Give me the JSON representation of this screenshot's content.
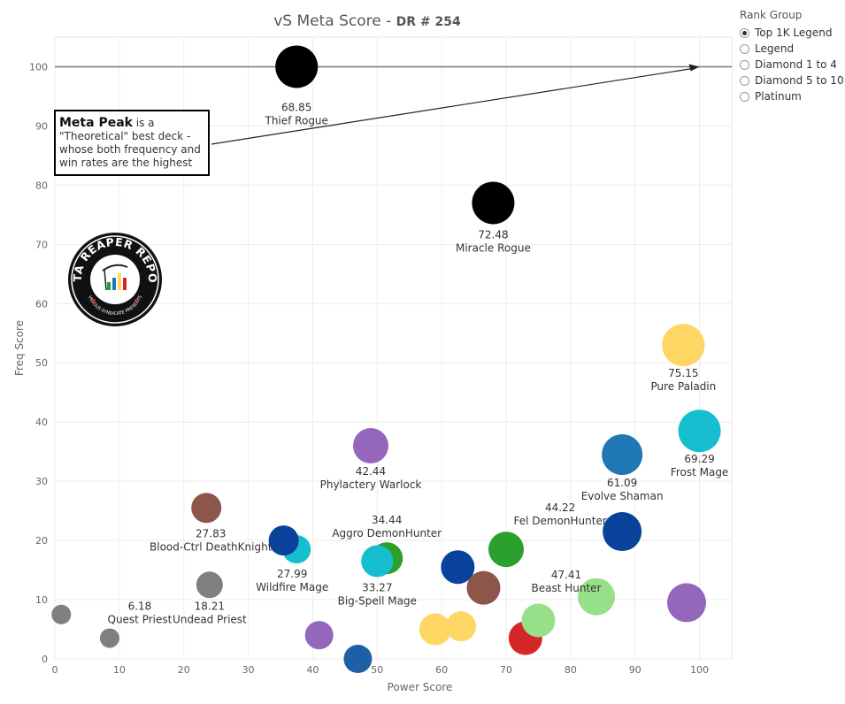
{
  "title": {
    "main": "vS Meta Score",
    "separator": " - ",
    "sub": "DR # 254"
  },
  "legend": {
    "title": "Rank Group",
    "options": [
      {
        "label": "Top 1K Legend",
        "selected": true
      },
      {
        "label": "Legend",
        "selected": false
      },
      {
        "label": "Diamond 1 to 4",
        "selected": false
      },
      {
        "label": "Diamond 5 to 10",
        "selected": false
      },
      {
        "label": "Platinum",
        "selected": false
      }
    ]
  },
  "annotation": {
    "bold": "Meta Peak",
    "text": " is a \"Theoretical\" best deck - whose both frequency and win rates are the highest"
  },
  "logo": {
    "text_top": "DATA REAPER REPORT",
    "text_bottom": "VICIOUS SYNDICATE PRESENTS"
  },
  "chart_data": {
    "type": "scatter",
    "title": "vS Meta Score - DR # 254",
    "xlabel": "Power Score",
    "ylabel": "Freq Score",
    "xlim": [
      0,
      105
    ],
    "ylim": [
      0,
      105
    ],
    "x_ticks": [
      0,
      10,
      20,
      30,
      40,
      50,
      60,
      70,
      80,
      90,
      100
    ],
    "y_ticks": [
      0,
      10,
      20,
      30,
      40,
      50,
      60,
      70,
      80,
      90,
      100
    ],
    "grid": true,
    "reference_line": {
      "y": 100
    },
    "annotation_arrow_to": [
      100,
      100
    ],
    "points": [
      {
        "name": "Thief Rogue",
        "score": "68.85",
        "x": 37.5,
        "y": 100,
        "color": "#000000",
        "size": 24
      },
      {
        "name": "Miracle Rogue",
        "score": "72.48",
        "x": 68,
        "y": 77,
        "color": "#000000",
        "size": 24
      },
      {
        "name": "Pure Paladin",
        "score": "75.15",
        "x": 97.5,
        "y": 53,
        "color": "#fdd663",
        "size": 24
      },
      {
        "name": "Frost Mage",
        "score": "69.29",
        "x": 100,
        "y": 38.5,
        "color": "#17becf",
        "size": 24
      },
      {
        "name": "Evolve Shaman",
        "score": "61.09",
        "x": 88,
        "y": 34.5,
        "color": "#1f77b4",
        "size": 23
      },
      {
        "name": "Phylactery Warlock",
        "score": "42.44",
        "x": 49,
        "y": 36,
        "color": "#9467bd",
        "size": 20
      },
      {
        "name": "Blood-Ctrl DeathKnight",
        "score": "27.83",
        "x": 23.5,
        "y": 25.5,
        "color": "#8c564b",
        "size": 17
      },
      {
        "name": "Fel DemonHunter",
        "score": "44.22",
        "x": 88,
        "y": 21.5,
        "color": "#08429a",
        "size": 22
      },
      {
        "name": "Beast Hunter",
        "score": "47.41",
        "x": 70,
        "y": 18.5,
        "color": "#2ca02c",
        "size": 20
      },
      {
        "name": "Aggro DemonHunter",
        "score": "34.44",
        "x": 51.5,
        "y": 17,
        "color": "#2ca02c",
        "size": 18
      },
      {
        "name": "Big-Spell Mage",
        "score": "33.27",
        "x": 50,
        "y": 16.5,
        "color": "#17becf",
        "size": 18
      },
      {
        "name": "Wildfire Mage",
        "score": "27.99",
        "x": 37.5,
        "y": 18.5,
        "color": "#17becf",
        "size": 16
      },
      {
        "name": "",
        "score": "",
        "x": 35.5,
        "y": 20,
        "color": "#08429a",
        "size": 17
      },
      {
        "name": "Undead Priest",
        "score": "18.21",
        "x": 24,
        "y": 12.5,
        "color": "#7f7f7f",
        "size": 15
      },
      {
        "name": "Quest Priest",
        "score": "6.18",
        "x": 8.5,
        "y": 3.5,
        "color": "#7f7f7f",
        "size": 11
      },
      {
        "name": "",
        "score": "",
        "x": 1,
        "y": 7.5,
        "color": "#7f7f7f",
        "size": 11
      },
      {
        "name": "",
        "score": "",
        "x": 41,
        "y": 4,
        "color": "#9467bd",
        "size": 16
      },
      {
        "name": "",
        "score": "",
        "x": 47,
        "y": 0,
        "color": "#1f5fa8",
        "size": 16
      },
      {
        "name": "",
        "score": "",
        "x": 59,
        "y": 5,
        "color": "#fdd663",
        "size": 18
      },
      {
        "name": "",
        "score": "",
        "x": 63,
        "y": 5.5,
        "color": "#fdd663",
        "size": 17
      },
      {
        "name": "",
        "score": "",
        "x": 62.5,
        "y": 15.5,
        "color": "#08429a",
        "size": 19
      },
      {
        "name": "",
        "score": "",
        "x": 66.5,
        "y": 12,
        "color": "#8c564b",
        "size": 19
      },
      {
        "name": "",
        "score": "",
        "x": 73,
        "y": 3.5,
        "color": "#d62728",
        "size": 19
      },
      {
        "name": "",
        "score": "",
        "x": 75,
        "y": 6.5,
        "color": "#98df8a",
        "size": 19
      },
      {
        "name": "",
        "score": "",
        "x": 84,
        "y": 10.5,
        "color": "#98df8a",
        "size": 21
      },
      {
        "name": "",
        "score": "",
        "x": 98,
        "y": 9.5,
        "color": "#9467bd",
        "size": 22
      }
    ]
  }
}
